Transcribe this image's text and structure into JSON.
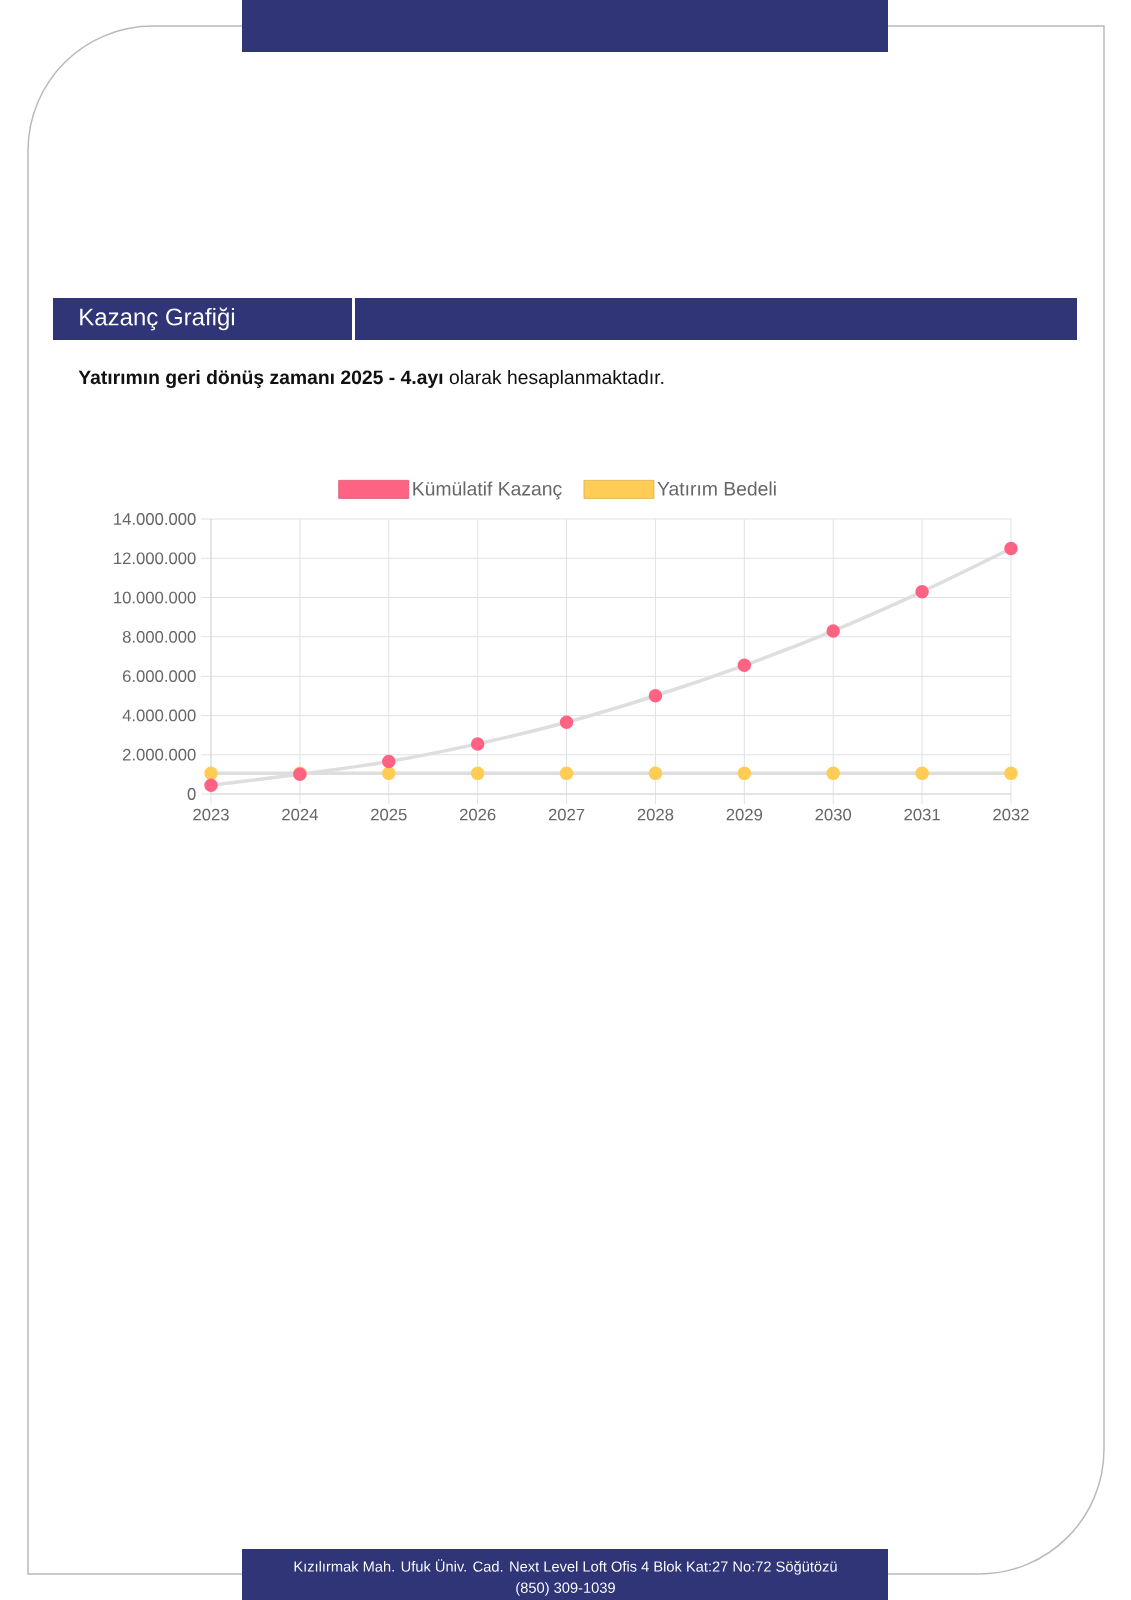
{
  "chart_data": {
    "type": "line",
    "title": "Kazanç Grafiği",
    "subtitle": "**Yatırımın geri dönüş zamanı 2025 - 4.ayı** olarak hesaplanmaktadır.",
    "annotations": [
      "Kızılırmak Mah. Ufuk Üniv. Cad. Next Level Loft Ofis 4 Blok Kat:27 No:72 Söğütözü",
      "(850) 309-1039"
    ],
    "categories": [
      "2023",
      "2024",
      "2025",
      "2026",
      "2027",
      "2028",
      "2029",
      "2030",
      "2031",
      "2032"
    ],
    "series": [
      {
        "name": "Kümülatif Kazanç",
        "color": "#ff6384",
        "values": [
          450000,
          1000000,
          1650000,
          2550000,
          3650000,
          5000000,
          6550000,
          8300000,
          10300000,
          12500000
        ]
      },
      {
        "name": "Yatırım Bedeli",
        "color": "#ffcd56",
        "values": [
          1050000,
          1050000,
          1050000,
          1050000,
          1050000,
          1050000,
          1050000,
          1050000,
          1050000,
          1050000
        ]
      }
    ],
    "ylim": [
      0,
      14000000
    ],
    "yticks": [
      0,
      {
        "value": 2000000,
        "label": "2.000.000"
      },
      {
        "value": 4000000,
        "label": "4.000.000"
      },
      {
        "value": 6000000,
        "label": "6.000.000"
      },
      {
        "value": 8000000,
        "label": "8.000.000"
      },
      {
        "value": 10000000,
        "label": "10.000.000"
      },
      {
        "value": 12000000,
        "label": "12.000.000"
      },
      {
        "value": 14000000,
        "label": "14.000.000"
      }
    ],
    "grid": true,
    "legend": "top",
    "marker": "circle",
    "line_style": "solid"
  }
}
